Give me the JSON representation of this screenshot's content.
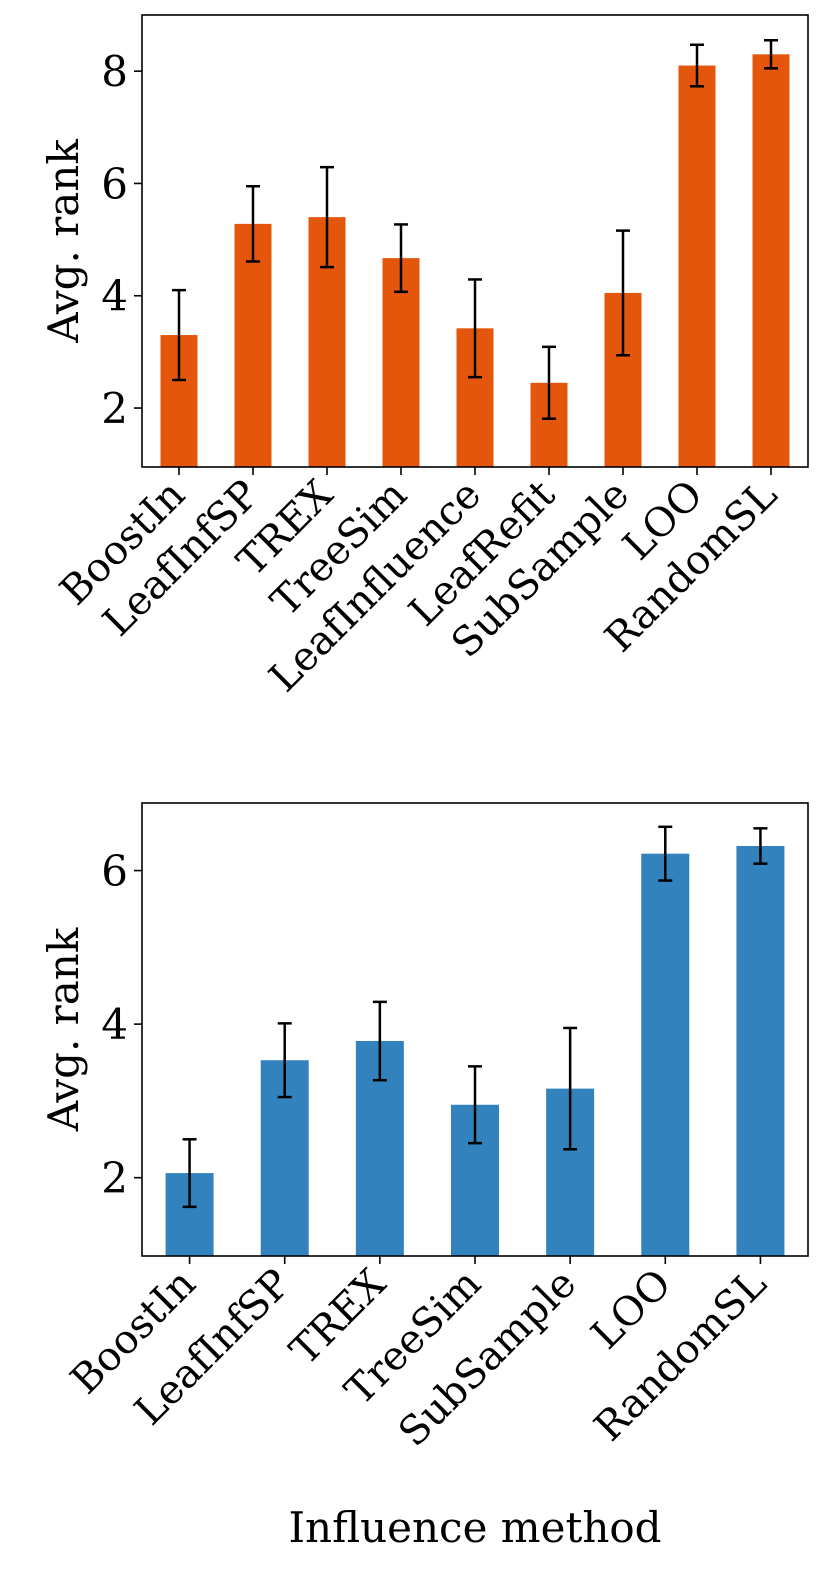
{
  "chart_data": [
    {
      "type": "bar",
      "title": "",
      "ylabel": "Avg. rank",
      "xlabel": "",
      "color": "#e4560b",
      "ylim": [
        0.95,
        9.0
      ],
      "yticks": [
        "2",
        "4",
        "6",
        "8"
      ],
      "categories": [
        "BoostIn",
        "LeafInfSP",
        "TREX",
        "TreeSim",
        "LeafInfluence",
        "LeafRefit",
        "SubSample",
        "LOO",
        "RandomSL"
      ],
      "values": [
        3.3,
        5.28,
        5.4,
        4.67,
        3.42,
        2.45,
        4.05,
        8.1,
        8.3
      ],
      "errors": [
        0.8,
        0.67,
        0.89,
        0.6,
        0.87,
        0.64,
        1.11,
        0.37,
        0.25
      ]
    },
    {
      "type": "bar",
      "title": "",
      "ylabel": "Avg. rank",
      "xlabel": "Influence method",
      "color": "#3282bd",
      "ylim": [
        0.98,
        6.88
      ],
      "yticks": [
        "2",
        "4",
        "6"
      ],
      "categories": [
        "BoostIn",
        "LeafInfSP",
        "TREX",
        "TreeSim",
        "SubSample",
        "LOO",
        "RandomSL"
      ],
      "values": [
        2.06,
        3.53,
        3.78,
        2.95,
        3.16,
        6.22,
        6.32
      ],
      "errors": [
        0.44,
        0.48,
        0.51,
        0.5,
        0.79,
        0.35,
        0.23
      ]
    }
  ]
}
